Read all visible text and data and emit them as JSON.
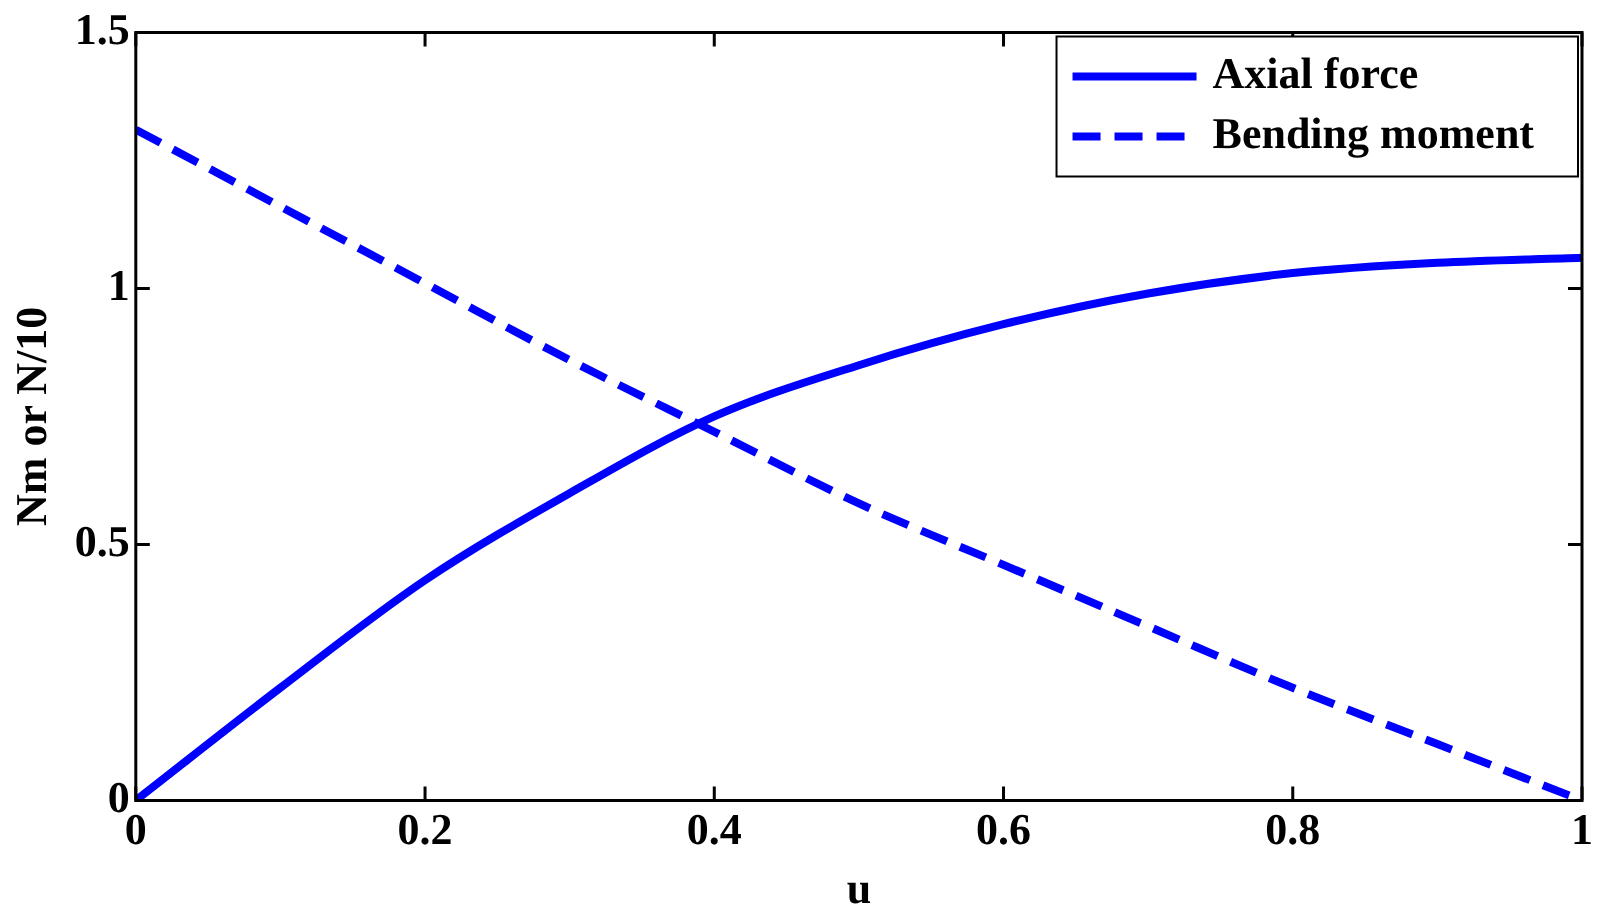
{
  "chart_data": {
    "type": "line",
    "xlabel": "u",
    "ylabel": "Nm or N/10",
    "xlim": [
      0,
      1
    ],
    "xticks": [
      0,
      0.2,
      0.4,
      0.6,
      0.8,
      1
    ],
    "ylim": [
      0,
      1.5
    ],
    "yticks": [
      0,
      0.5,
      1,
      1.5
    ],
    "grid": false,
    "legend": "top right",
    "marker": "none",
    "x": [
      0,
      0.1,
      0.2,
      0.3,
      0.4,
      0.5,
      0.6,
      0.7,
      0.8,
      0.9,
      1
    ],
    "series": [
      {
        "name": "Axial force",
        "color": "#0000ff",
        "line_style": "solid",
        "values": [
          0,
          0.22,
          0.43,
          0.6,
          0.75,
          0.85,
          0.93,
          0.99,
          1.03,
          1.05,
          1.06
        ]
      },
      {
        "name": "Bending moment",
        "color": "#0000ff",
        "line_style": "dashed",
        "values": [
          1.31,
          1.16,
          1.01,
          0.86,
          0.72,
          0.58,
          0.46,
          0.34,
          0.22,
          0.11,
          0
        ]
      }
    ]
  }
}
